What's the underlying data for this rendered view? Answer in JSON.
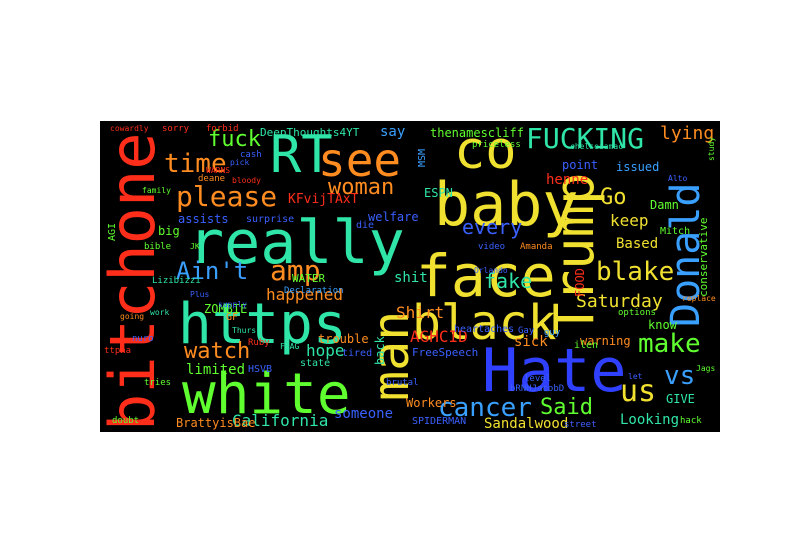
{
  "words": [
    {
      "text": "really",
      "color": "#2fe6a8"
    },
    {
      "text": "https",
      "color": "#2fe6a8"
    },
    {
      "text": "white",
      "color": "#60ff30"
    },
    {
      "text": "bitchone",
      "color": "#ff2e1a"
    },
    {
      "text": "face",
      "color": "#f0e030"
    },
    {
      "text": "baby",
      "color": "#f0e030"
    },
    {
      "text": "Hate",
      "color": "#3040ff"
    },
    {
      "text": "Trump",
      "color": "#f0e030"
    },
    {
      "text": "black",
      "color": "#f0e030"
    },
    {
      "text": "man",
      "color": "#f0e030"
    },
    {
      "text": "RT",
      "color": "#2fe6a8"
    },
    {
      "text": "see",
      "color": "#ff8c20"
    },
    {
      "text": "co",
      "color": "#f0e030"
    },
    {
      "text": "Donald",
      "color": "#3aa0ff"
    },
    {
      "text": "FUCKING",
      "color": "#2fe6a8"
    },
    {
      "text": "please",
      "color": "#ff8c20"
    },
    {
      "text": "time",
      "color": "#ff8c20"
    },
    {
      "text": "fuck",
      "color": "#60ff30"
    },
    {
      "text": "woman",
      "color": "#ff8c20"
    },
    {
      "text": "Ain't",
      "color": "#3aa0ff"
    },
    {
      "text": "amp",
      "color": "#ff8c20"
    },
    {
      "text": "every",
      "color": "#3a60ff"
    },
    {
      "text": "blake",
      "color": "#f0e030"
    },
    {
      "text": "make",
      "color": "#60ff30"
    },
    {
      "text": "cancer",
      "color": "#3aa0ff"
    },
    {
      "text": "watch",
      "color": "#ff8c20"
    },
    {
      "text": "us",
      "color": "#f0e030"
    },
    {
      "text": "vs",
      "color": "#3aa0ff"
    },
    {
      "text": "Said",
      "color": "#60ff30"
    },
    {
      "text": "Go",
      "color": "#f0e030"
    },
    {
      "text": "fake",
      "color": "#2fe6a8"
    },
    {
      "text": "lying",
      "color": "#ff8c20"
    },
    {
      "text": "Saturday",
      "color": "#f0e030"
    },
    {
      "text": "keep",
      "color": "#f0e030"
    },
    {
      "text": "happened",
      "color": "#ff8c20"
    },
    {
      "text": "California",
      "color": "#2fe6a8"
    },
    {
      "text": "someone",
      "color": "#3a60ff"
    },
    {
      "text": "Looking",
      "color": "#2fe6a8"
    },
    {
      "text": "Sandalwood",
      "color": "#f0e030"
    },
    {
      "text": "hope",
      "color": "#2fe6a8"
    },
    {
      "text": "Shirt",
      "color": "#ff8c20"
    },
    {
      "text": "assists",
      "color": "#3a60ff"
    },
    {
      "text": "limited",
      "color": "#60ff30"
    },
    {
      "text": "DeepThoughts4YT",
      "color": "#2fe6a8"
    },
    {
      "text": "thenamescliff",
      "color": "#60ff30"
    },
    {
      "text": "henne",
      "color": "#ff2e1a"
    },
    {
      "text": "AGHCID",
      "color": "#ff2e1a"
    },
    {
      "text": "Damn",
      "color": "#60ff30"
    },
    {
      "text": "issued",
      "color": "#3aa0ff"
    },
    {
      "text": "point",
      "color": "#3a60ff"
    },
    {
      "text": "Based",
      "color": "#f0e030"
    },
    {
      "text": "ESPN",
      "color": "#2fe6a8"
    },
    {
      "text": "say",
      "color": "#3aa0ff"
    },
    {
      "text": "shit",
      "color": "#2fe6a8"
    },
    {
      "text": "sick",
      "color": "#ff8c20"
    },
    {
      "text": "warning",
      "color": "#ff8c20"
    },
    {
      "text": "GIVE",
      "color": "#2fe6a8"
    },
    {
      "text": "know",
      "color": "#60ff30"
    },
    {
      "text": "Workers",
      "color": "#ff8c20"
    },
    {
      "text": "trouble",
      "color": "#ff8c20"
    },
    {
      "text": "ZOMBIE",
      "color": "#60ff30"
    },
    {
      "text": "big",
      "color": "#60ff30"
    },
    {
      "text": "surprise",
      "color": "#3a60ff"
    },
    {
      "text": "welfare",
      "color": "#3a60ff"
    },
    {
      "text": "KFvijTAxT",
      "color": "#ff2e1a"
    },
    {
      "text": "BrattyisBae",
      "color": "#ff8c20"
    },
    {
      "text": "FOOD",
      "color": "#ff2e1a"
    },
    {
      "text": "conservative",
      "color": "#60ff30"
    },
    {
      "text": "back",
      "color": "#2fe6a8"
    },
    {
      "text": "FreeSpeech",
      "color": "#3a60ff"
    },
    {
      "text": "SPIDERMAN",
      "color": "#3a60ff"
    },
    {
      "text": "MSM",
      "color": "#3aa0ff"
    },
    {
      "text": "heartaches",
      "color": "#3a60ff"
    },
    {
      "text": "WATER",
      "color": "#60ff30"
    },
    {
      "text": "Mitch",
      "color": "#60ff30"
    },
    {
      "text": "Declaration",
      "color": "#3aa0ff"
    },
    {
      "text": "state",
      "color": "#2fe6a8"
    },
    {
      "text": "tired",
      "color": "#3a60ff"
    },
    {
      "text": "forbid",
      "color": "#ff2e1a"
    },
    {
      "text": "sorry",
      "color": "#ff2e1a"
    },
    {
      "text": "cowardly",
      "color": "#ff2e1a"
    },
    {
      "text": "priceless",
      "color": "#60ff30"
    },
    {
      "text": "chelseaamac",
      "color": "#2fe6a8"
    },
    {
      "text": "study",
      "color": "#60ff30"
    },
    {
      "text": "hack",
      "color": "#60ff30"
    },
    {
      "text": "deane",
      "color": "#ff8c20"
    },
    {
      "text": "WARNS",
      "color": "#ff2e1a"
    },
    {
      "text": "bloody",
      "color": "#ff2e1a"
    },
    {
      "text": "GF",
      "color": "#ff8c20"
    },
    {
      "text": "die",
      "color": "#3a60ff"
    },
    {
      "text": "video",
      "color": "#3a60ff"
    },
    {
      "text": "street",
      "color": "#3a60ff"
    },
    {
      "text": "Jags",
      "color": "#60ff30"
    },
    {
      "text": "options",
      "color": "#60ff30"
    },
    {
      "text": "brutal",
      "color": "#3a60ff"
    },
    {
      "text": "level",
      "color": "#3a60ff"
    },
    {
      "text": "tries",
      "color": "#60ff30"
    },
    {
      "text": "AGI",
      "color": "#60ff30"
    },
    {
      "text": "bible",
      "color": "#60ff30"
    },
    {
      "text": "Lizibizzi",
      "color": "#2fe6a8"
    },
    {
      "text": "pick",
      "color": "#3a60ff"
    },
    {
      "text": "cash",
      "color": "#3a60ff"
    },
    {
      "text": "HSVB",
      "color": "#3a60ff"
    },
    {
      "text": "doubt",
      "color": "#60ff30"
    },
    {
      "text": "Orlando",
      "color": "#3a60ff"
    },
    {
      "text": "Amanda",
      "color": "#ff8c20"
    },
    {
      "text": "replace",
      "color": "#ff8c20"
    },
    {
      "text": "ttpha",
      "color": "#ff2e1a"
    },
    {
      "text": "let",
      "color": "#3a60ff"
    },
    {
      "text": "bRNHJacobD",
      "color": "#3a60ff"
    },
    {
      "text": "Gay",
      "color": "#3a60ff"
    },
    {
      "text": "FLAG",
      "color": "#2fe6a8"
    },
    {
      "text": "ilen",
      "color": "#60ff30"
    },
    {
      "text": "Plus",
      "color": "#3a60ff"
    },
    {
      "text": "Ruby",
      "color": "#ff2e1a"
    },
    {
      "text": "Thurs",
      "color": "#2fe6a8"
    },
    {
      "text": "nuro",
      "color": "#3a60ff"
    },
    {
      "text": "supply",
      "color": "#3a60ff"
    },
    {
      "text": "going",
      "color": "#ff8c20"
    },
    {
      "text": "work",
      "color": "#2fe6a8"
    },
    {
      "text": "JK",
      "color": "#60ff30"
    },
    {
      "text": "Alto",
      "color": "#3a60ff"
    },
    {
      "text": "family",
      "color": "#60ff30"
    },
    {
      "text": "guy",
      "color": "#3aa0ff"
    }
  ]
}
